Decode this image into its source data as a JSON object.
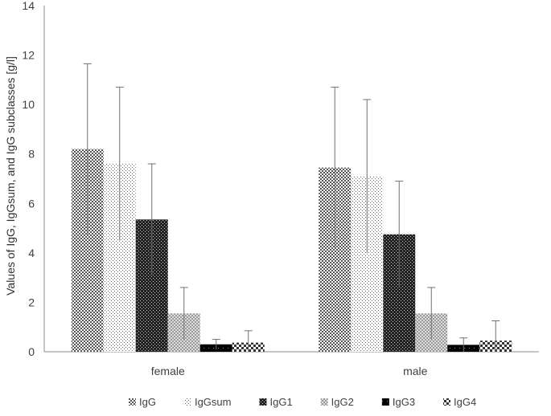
{
  "chart_data": {
    "type": "bar",
    "categories": [
      "female",
      "male"
    ],
    "series": [
      {
        "name": "IgG",
        "values": [
          8.2,
          7.45
        ],
        "errors": [
          3.45,
          3.25
        ],
        "pattern": "dense-check"
      },
      {
        "name": "IgGsum",
        "values": [
          7.6,
          7.1
        ],
        "errors": [
          3.1,
          3.1
        ],
        "pattern": "dots"
      },
      {
        "name": "IgG1",
        "values": [
          5.35,
          4.75
        ],
        "errors": [
          2.25,
          2.15
        ],
        "pattern": "dark-check"
      },
      {
        "name": "IgG2",
        "values": [
          1.55,
          1.55
        ],
        "errors": [
          1.05,
          1.05
        ],
        "pattern": "light-check"
      },
      {
        "name": "IgG3",
        "values": [
          0.3,
          0.28
        ],
        "errors": [
          0.2,
          0.28
        ],
        "pattern": "solid-dots"
      },
      {
        "name": "IgG4",
        "values": [
          0.37,
          0.45
        ],
        "errors": [
          0.48,
          0.8
        ],
        "pattern": "big-check"
      }
    ],
    "yticks": [
      "0",
      "2",
      "4",
      "6",
      "8",
      "10",
      "12",
      "14"
    ],
    "ylim": [
      0,
      14
    ],
    "ylabel": "Values of IgG, IgGsum, and IgG subclasses [g/l]",
    "xlabel": "",
    "title": "",
    "grid": false,
    "legend": "bottom"
  }
}
